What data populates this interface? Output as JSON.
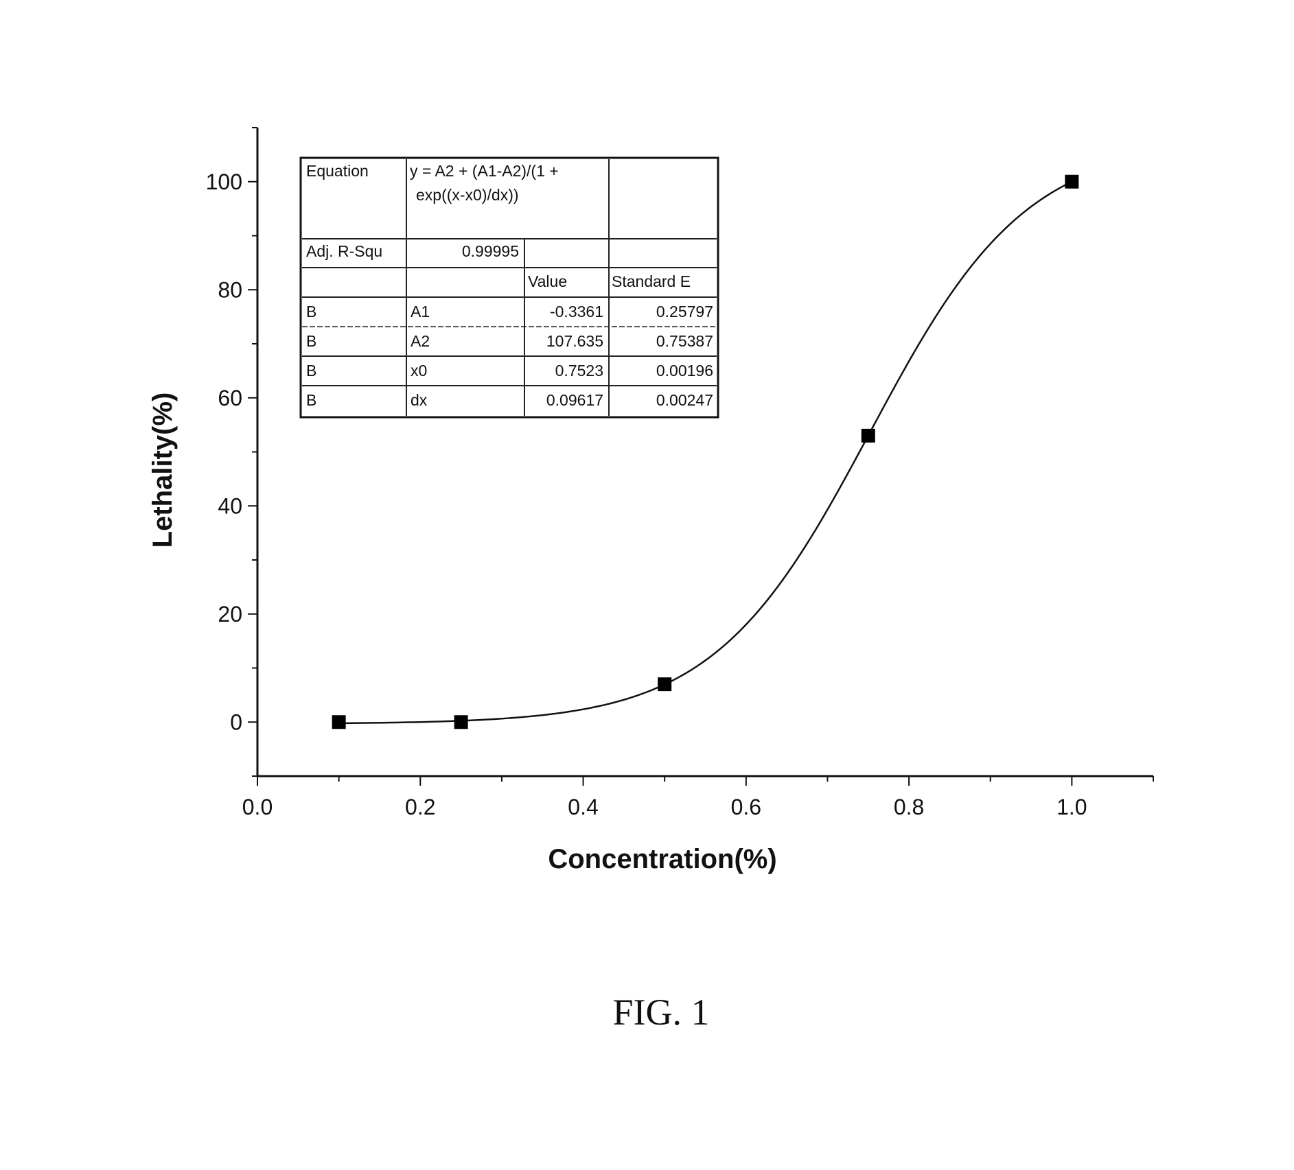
{
  "chart_data": {
    "type": "scatter",
    "xlabel": "Concentration(%)",
    "ylabel": "Lethality(%)",
    "xlim": [
      0.0,
      1.1
    ],
    "ylim": [
      -10,
      110
    ],
    "xticks": [
      "0.0",
      "0.2",
      "0.4",
      "0.6",
      "0.8",
      "1.0"
    ],
    "xtick_values": [
      0.0,
      0.2,
      0.4,
      0.6,
      0.8,
      1.0
    ],
    "yticks": [
      "0",
      "20",
      "40",
      "60",
      "80",
      "100"
    ],
    "ytick_values": [
      0,
      20,
      40,
      60,
      80,
      100
    ],
    "marker": "square",
    "series": [
      {
        "x": [
          0.1,
          0.25,
          0.5,
          0.75,
          1.0
        ],
        "y": [
          0,
          0,
          7,
          53,
          100
        ]
      }
    ],
    "fit": {
      "model": "boltzmann",
      "A1": -0.3361,
      "A2": 107.635,
      "x0": 0.7523,
      "dx": 0.09617
    },
    "grid": false,
    "legend": "none"
  },
  "table": {
    "equation_label": "Equation",
    "equation_line1": "y = A2 + (A1-A2)/(1 +",
    "equation_line2": "exp((x-x0)/dx))",
    "adj_r_label": "Adj. R-Squ",
    "adj_r_value": "0.99995",
    "value_header": "Value",
    "std_header": "Standard E",
    "rows": [
      {
        "c0": "B",
        "c1": "A1",
        "value": "-0.3361",
        "std": "0.25797"
      },
      {
        "c0": "B",
        "c1": "A2",
        "value": "107.635",
        "std": "0.75387"
      },
      {
        "c0": "B",
        "c1": "x0",
        "value": "0.7523",
        "std": "0.00196"
      },
      {
        "c0": "B",
        "c1": "dx",
        "value": "0.09617",
        "std": "0.00247"
      }
    ]
  },
  "caption": "FIG. 1"
}
